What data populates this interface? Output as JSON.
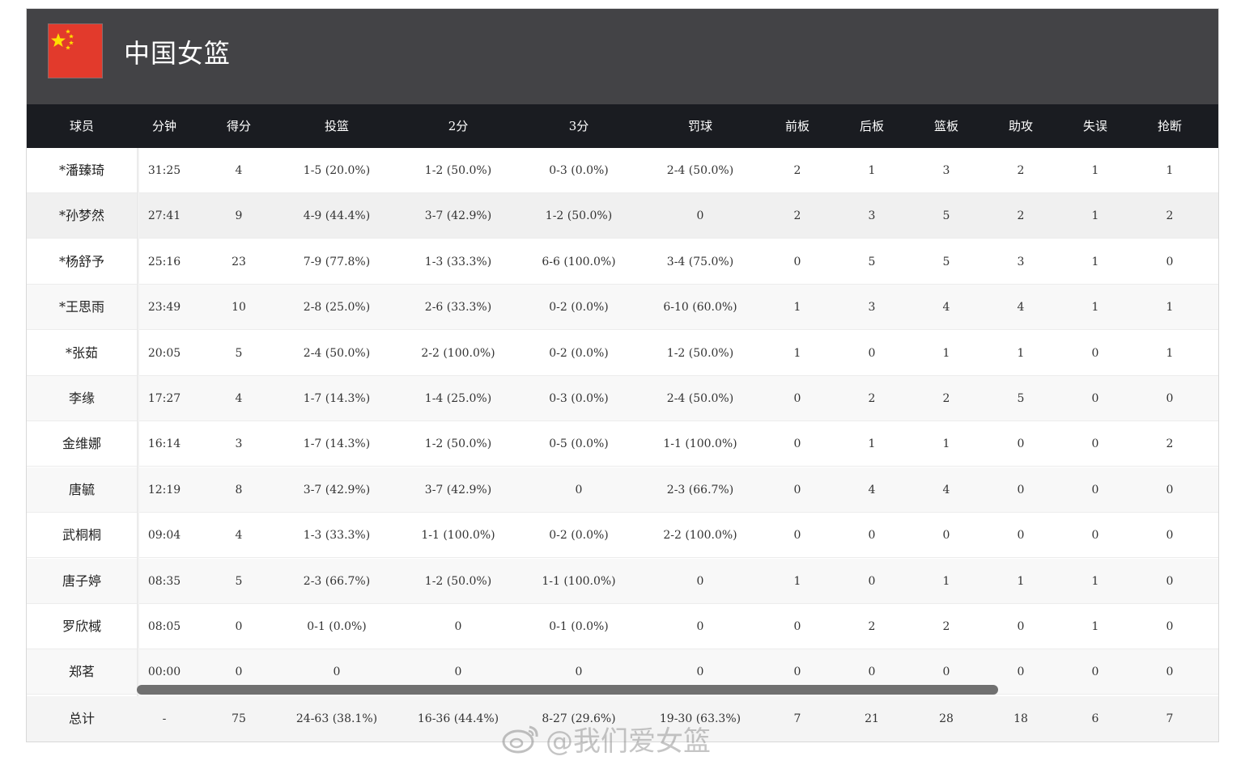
{
  "team": {
    "name": "中国女篮"
  },
  "columns": [
    "球员",
    "分钟",
    "得分",
    "投篮",
    "2分",
    "3分",
    "罚球",
    "前板",
    "后板",
    "篮板",
    "助攻",
    "失误",
    "抢断"
  ],
  "players": [
    [
      "*潘臻琦",
      "31:25",
      "4",
      "1-5 (20.0%)",
      "1-2 (50.0%)",
      "0-3 (0.0%)",
      "2-4 (50.0%)",
      "2",
      "1",
      "3",
      "2",
      "1",
      "1"
    ],
    [
      "*孙梦然",
      "27:41",
      "9",
      "4-9 (44.4%)",
      "3-7 (42.9%)",
      "1-2 (50.0%)",
      "0",
      "2",
      "3",
      "5",
      "2",
      "1",
      "2"
    ],
    [
      "*杨舒予",
      "25:16",
      "23",
      "7-9 (77.8%)",
      "1-3 (33.3%)",
      "6-6 (100.0%)",
      "3-4 (75.0%)",
      "0",
      "5",
      "5",
      "3",
      "1",
      "0"
    ],
    [
      "*王思雨",
      "23:49",
      "10",
      "2-8 (25.0%)",
      "2-6 (33.3%)",
      "0-2 (0.0%)",
      "6-10 (60.0%)",
      "1",
      "3",
      "4",
      "4",
      "1",
      "1"
    ],
    [
      "*张茹",
      "20:05",
      "5",
      "2-4 (50.0%)",
      "2-2 (100.0%)",
      "0-2 (0.0%)",
      "1-2 (50.0%)",
      "1",
      "0",
      "1",
      "1",
      "0",
      "1"
    ],
    [
      "李缘",
      "17:27",
      "4",
      "1-7 (14.3%)",
      "1-4 (25.0%)",
      "0-3 (0.0%)",
      "2-4 (50.0%)",
      "0",
      "2",
      "2",
      "5",
      "0",
      "0"
    ],
    [
      "金维娜",
      "16:14",
      "3",
      "1-7 (14.3%)",
      "1-2 (50.0%)",
      "0-5 (0.0%)",
      "1-1 (100.0%)",
      "0",
      "1",
      "1",
      "0",
      "0",
      "2"
    ],
    [
      "唐毓",
      "12:19",
      "8",
      "3-7 (42.9%)",
      "3-7 (42.9%)",
      "0",
      "2-3 (66.7%)",
      "0",
      "4",
      "4",
      "0",
      "0",
      "0"
    ],
    [
      "武桐桐",
      "09:04",
      "4",
      "1-3 (33.3%)",
      "1-1 (100.0%)",
      "0-2 (0.0%)",
      "2-2 (100.0%)",
      "0",
      "0",
      "0",
      "0",
      "0",
      "0"
    ],
    [
      "唐子婷",
      "08:35",
      "5",
      "2-3 (66.7%)",
      "1-2 (50.0%)",
      "1-1 (100.0%)",
      "0",
      "1",
      "0",
      "1",
      "1",
      "1",
      "0"
    ],
    [
      "罗欣棫",
      "08:05",
      "0",
      "0-1 (0.0%)",
      "0",
      "0-1 (0.0%)",
      "0",
      "0",
      "2",
      "2",
      "0",
      "1",
      "0"
    ],
    [
      "郑茗",
      "00:00",
      "0",
      "0",
      "0",
      "0",
      "0",
      "0",
      "0",
      "0",
      "0",
      "0",
      "0"
    ]
  ],
  "totals": [
    "总计",
    "-",
    "75",
    "24-63 (38.1%)",
    "16-36 (44.4%)",
    "8-27 (29.6%)",
    "19-30 (63.3%)",
    "7",
    "21",
    "28",
    "18",
    "6",
    "7"
  ],
  "watermark": "@我们爱女篮",
  "colors": {
    "header_bg": "#434346",
    "column_header_bg": "#1a1c21",
    "flag_red": "#e23a2c",
    "flag_star": "#ffde00"
  }
}
